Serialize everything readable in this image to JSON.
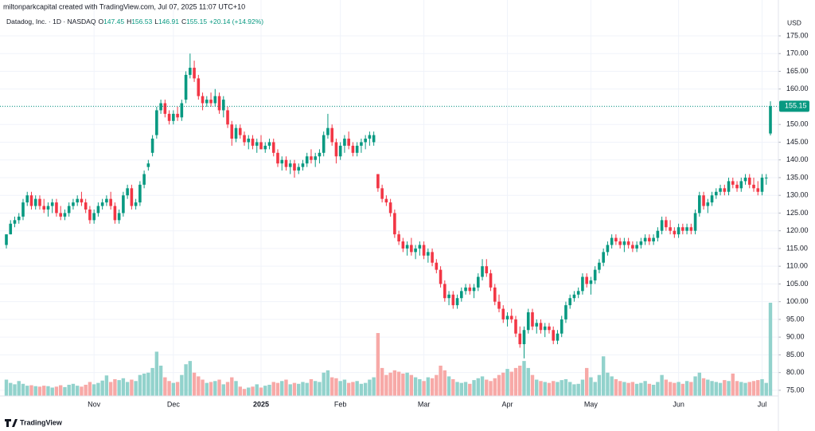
{
  "header": "miltonparkcapital created with TradingView.com, Jul 07, 2025 11:07 UTC+10",
  "footer": "TradingView",
  "chart_data": {
    "type": "candlestick",
    "legend": {
      "name": "Datadog, Inc. · 1D · NASDAQ",
      "ohlc_labels": [
        "O",
        "H",
        "L",
        "C"
      ],
      "change": "+20.14 (+14.92%)"
    },
    "currency": "USD",
    "up_color": "#089981",
    "down_color": "#f23645",
    "volume_up_color": "#92d2cc",
    "volume_down_color": "#f7a9a7",
    "grid": true,
    "ylim": [
      73.4,
      177.7
    ],
    "yticks": [
      {
        "value": 75,
        "label": "75.00"
      },
      {
        "value": 80,
        "label": "80.00"
      },
      {
        "value": 85,
        "label": "85.00"
      },
      {
        "value": 90,
        "label": "90.00"
      },
      {
        "value": 95,
        "label": "95.00"
      },
      {
        "value": 100,
        "label": "100.00"
      },
      {
        "value": 105,
        "label": "105.00"
      },
      {
        "value": 110,
        "label": "110.00"
      },
      {
        "value": 115,
        "label": "115.00"
      },
      {
        "value": 120,
        "label": "120.00"
      },
      {
        "value": 125,
        "label": "125.00"
      },
      {
        "value": 130,
        "label": "130.00"
      },
      {
        "value": 135,
        "label": "135.00"
      },
      {
        "value": 140,
        "label": "140.00"
      },
      {
        "value": 145,
        "label": "145.00"
      },
      {
        "value": 150,
        "label": "150.00"
      },
      {
        "value": 155,
        "label": "155.00"
      },
      {
        "value": 160,
        "label": "160.00"
      },
      {
        "value": 165,
        "label": "165.00"
      },
      {
        "value": 170,
        "label": "170.00"
      },
      {
        "value": 175,
        "label": "175.00"
      }
    ],
    "categories": [
      null,
      null,
      null,
      null,
      null,
      null,
      null,
      null,
      null,
      null,
      null,
      null,
      null,
      null,
      null,
      null,
      null,
      null,
      null,
      null,
      null,
      "Nov",
      null,
      null,
      null,
      null,
      null,
      null,
      null,
      null,
      null,
      null,
      null,
      null,
      null,
      null,
      null,
      null,
      null,
      null,
      "Dec",
      null,
      null,
      null,
      null,
      null,
      null,
      null,
      null,
      null,
      null,
      null,
      null,
      null,
      null,
      null,
      null,
      null,
      null,
      null,
      null,
      "2025",
      null,
      null,
      null,
      null,
      null,
      null,
      null,
      null,
      null,
      null,
      null,
      null,
      null,
      null,
      null,
      null,
      null,
      null,
      "Feb",
      null,
      null,
      null,
      null,
      null,
      null,
      null,
      null,
      null,
      null,
      null,
      null,
      null,
      null,
      null,
      null,
      null,
      null,
      null,
      "Mar",
      null,
      null,
      null,
      null,
      null,
      null,
      null,
      null,
      null,
      null,
      null,
      null,
      null,
      null,
      null,
      null,
      null,
      null,
      null,
      "Apr",
      null,
      null,
      null,
      null,
      null,
      null,
      null,
      null,
      null,
      null,
      null,
      null,
      null,
      null,
      null,
      null,
      null,
      null,
      null,
      "May",
      null,
      null,
      null,
      null,
      null,
      null,
      null,
      null,
      null,
      null,
      null,
      null,
      null,
      null,
      null,
      null,
      null,
      null,
      null,
      null,
      "Jun",
      null,
      null,
      null,
      null,
      null,
      null,
      null,
      null,
      null,
      null,
      null,
      null,
      null,
      null,
      null,
      null,
      null,
      null,
      null,
      "Jul",
      null,
      null
    ],
    "candles": [
      [
        116,
        119,
        115,
        119
      ],
      [
        119,
        123,
        119,
        122
      ],
      [
        122,
        124,
        121,
        123
      ],
      [
        123,
        125,
        122,
        124
      ],
      [
        124,
        129,
        123,
        128
      ],
      [
        128,
        131,
        127,
        130
      ],
      [
        130,
        131,
        126,
        127
      ],
      [
        127,
        130,
        126,
        129
      ],
      [
        129,
        130,
        126,
        127
      ],
      [
        127,
        129,
        125,
        126
      ],
      [
        126,
        128,
        124,
        127
      ],
      [
        127,
        129,
        125,
        128
      ],
      [
        128,
        129,
        124,
        125
      ],
      [
        125,
        127,
        123,
        124
      ],
      [
        124,
        126,
        123,
        125
      ],
      [
        125,
        128,
        124,
        127
      ],
      [
        127,
        129,
        126,
        128
      ],
      [
        128,
        130,
        127,
        129
      ],
      [
        129,
        131,
        127,
        128
      ],
      [
        128,
        129,
        125,
        126
      ],
      [
        126,
        127,
        122,
        123
      ],
      [
        123,
        126,
        122,
        125
      ],
      [
        125,
        128,
        124,
        127
      ],
      [
        127,
        129,
        126,
        128
      ],
      [
        128,
        130,
        127,
        129
      ],
      [
        129,
        131,
        126,
        127
      ],
      [
        127,
        128,
        122,
        123
      ],
      [
        123,
        126,
        122,
        125
      ],
      [
        125,
        131,
        124,
        130
      ],
      [
        130,
        133,
        129,
        132
      ],
      [
        132,
        133,
        126,
        127
      ],
      [
        127,
        129,
        126,
        128
      ],
      [
        128,
        134,
        127,
        133
      ],
      [
        133,
        137,
        132,
        136
      ],
      [
        138,
        140,
        137,
        139
      ],
      [
        142,
        147,
        141,
        146
      ],
      [
        147,
        155,
        146,
        154
      ],
      [
        154,
        157,
        153,
        156
      ],
      [
        156,
        157,
        152,
        153
      ],
      [
        153,
        154,
        150,
        151
      ],
      [
        151,
        154,
        150,
        153
      ],
      [
        153,
        155,
        151,
        152
      ],
      [
        152,
        157,
        151,
        156
      ],
      [
        157,
        165,
        156,
        164
      ],
      [
        164,
        170,
        163,
        166
      ],
      [
        166,
        168,
        162,
        163
      ],
      [
        163,
        164,
        157,
        158
      ],
      [
        158,
        159,
        154,
        156
      ],
      [
        156,
        158,
        155,
        157
      ],
      [
        157,
        159,
        155,
        156
      ],
      [
        156,
        160,
        155,
        158
      ],
      [
        158,
        159,
        153,
        154
      ],
      [
        154,
        158,
        152,
        157
      ],
      [
        154,
        155,
        149,
        150
      ],
      [
        150,
        151,
        144,
        146
      ],
      [
        146,
        150,
        145,
        149
      ],
      [
        149,
        150,
        146,
        147
      ],
      [
        147,
        148,
        144,
        145
      ],
      [
        145,
        147,
        143,
        146
      ],
      [
        146,
        147,
        143,
        144
      ],
      [
        144,
        146,
        142,
        145
      ],
      [
        145,
        147,
        143,
        143
      ],
      [
        143,
        145,
        142,
        144
      ],
      [
        144,
        146,
        143,
        145
      ],
      [
        145,
        146,
        141,
        142
      ],
      [
        142,
        143,
        138,
        139
      ],
      [
        139,
        141,
        137,
        140
      ],
      [
        140,
        141,
        137,
        138
      ],
      [
        138,
        140,
        136,
        139
      ],
      [
        139,
        140,
        135,
        137
      ],
      [
        137,
        139,
        136,
        138
      ],
      [
        138,
        140,
        137,
        139
      ],
      [
        139,
        142,
        138,
        141
      ],
      [
        141,
        143,
        139,
        140
      ],
      [
        140,
        142,
        138,
        141
      ],
      [
        141,
        143,
        139,
        142
      ],
      [
        142,
        148,
        141,
        147
      ],
      [
        147,
        153,
        146,
        149
      ],
      [
        149,
        150,
        144,
        145
      ],
      [
        145,
        146,
        139,
        141
      ],
      [
        141,
        145,
        140,
        144
      ],
      [
        144,
        147,
        142,
        146
      ],
      [
        146,
        148,
        143,
        144
      ],
      [
        144,
        145,
        141,
        142
      ],
      [
        142,
        145,
        141,
        144
      ],
      [
        144,
        146,
        142,
        145
      ],
      [
        145,
        147,
        143,
        146
      ],
      [
        146,
        148,
        144,
        147
      ],
      [
        145,
        148,
        144,
        147
      ],
      [
        136,
        136,
        131,
        132
      ],
      [
        132,
        133,
        128,
        129
      ],
      [
        129,
        130,
        127,
        128
      ],
      [
        128,
        129,
        124,
        125
      ],
      [
        125,
        126,
        118,
        119
      ],
      [
        119,
        120,
        116,
        117
      ],
      [
        117,
        118,
        114,
        115
      ],
      [
        115,
        117,
        113,
        116
      ],
      [
        116,
        118,
        113,
        114
      ],
      [
        114,
        116,
        112,
        115
      ],
      [
        115,
        117,
        113,
        116
      ],
      [
        116,
        117,
        112,
        113
      ],
      [
        113,
        115,
        111,
        114
      ],
      [
        114,
        115,
        110,
        111
      ],
      [
        111,
        112,
        108,
        109
      ],
      [
        109,
        110,
        104,
        105
      ],
      [
        105,
        106,
        100,
        101
      ],
      [
        101,
        103,
        99,
        102
      ],
      [
        102,
        103,
        98,
        99
      ],
      [
        99,
        102,
        98,
        101
      ],
      [
        101,
        104,
        100,
        103
      ],
      [
        103,
        105,
        102,
        104
      ],
      [
        104,
        105,
        102,
        103
      ],
      [
        103,
        105,
        101,
        104
      ],
      [
        104,
        108,
        103,
        107
      ],
      [
        107,
        112,
        106,
        110
      ],
      [
        110,
        112,
        107,
        108
      ],
      [
        108,
        109,
        103,
        104
      ],
      [
        104,
        105,
        99,
        100
      ],
      [
        100,
        102,
        97,
        98
      ],
      [
        98,
        99,
        94,
        95
      ],
      [
        95,
        97,
        93,
        96
      ],
      [
        96,
        98,
        94,
        95
      ],
      [
        95,
        96,
        90,
        91
      ],
      [
        91,
        93,
        87,
        88
      ],
      [
        88,
        93,
        84,
        92
      ],
      [
        92,
        98,
        91,
        97
      ],
      [
        97,
        98,
        92,
        93
      ],
      [
        93,
        95,
        91,
        94
      ],
      [
        94,
        95,
        91,
        92
      ],
      [
        92,
        94,
        90,
        93
      ],
      [
        93,
        94,
        91,
        92
      ],
      [
        92,
        93,
        88,
        89
      ],
      [
        89,
        92,
        88,
        91
      ],
      [
        91,
        96,
        90,
        95
      ],
      [
        95,
        100,
        94,
        99
      ],
      [
        99,
        102,
        98,
        101
      ],
      [
        101,
        103,
        100,
        102
      ],
      [
        102,
        104,
        101,
        103
      ],
      [
        103,
        108,
        102,
        107
      ],
      [
        107,
        108,
        104,
        105
      ],
      [
        105,
        107,
        102,
        106
      ],
      [
        106,
        110,
        105,
        109
      ],
      [
        109,
        112,
        108,
        111
      ],
      [
        111,
        115,
        110,
        114
      ],
      [
        114,
        117,
        113,
        116
      ],
      [
        116,
        119,
        115,
        118
      ],
      [
        118,
        119,
        116,
        117
      ],
      [
        117,
        118,
        115,
        116
      ],
      [
        116,
        118,
        114,
        117
      ],
      [
        117,
        118,
        115,
        116
      ],
      [
        116,
        117,
        114,
        115
      ],
      [
        115,
        117,
        114,
        116
      ],
      [
        116,
        118,
        115,
        117
      ],
      [
        117,
        119,
        116,
        118
      ],
      [
        118,
        119,
        116,
        117
      ],
      [
        117,
        119,
        116,
        118
      ],
      [
        118,
        121,
        117,
        120
      ],
      [
        120,
        124,
        119,
        123
      ],
      [
        123,
        124,
        120,
        121
      ],
      [
        121,
        123,
        119,
        120
      ],
      [
        120,
        121,
        118,
        119
      ],
      [
        119,
        122,
        118,
        121
      ],
      [
        121,
        122,
        119,
        120
      ],
      [
        120,
        122,
        119,
        121
      ],
      [
        121,
        122,
        119,
        120
      ],
      [
        120,
        126,
        119,
        125
      ],
      [
        125,
        131,
        124,
        130
      ],
      [
        130,
        131,
        126,
        127
      ],
      [
        127,
        129,
        125,
        128
      ],
      [
        128,
        131,
        127,
        130
      ],
      [
        130,
        132,
        129,
        131
      ],
      [
        131,
        133,
        130,
        132
      ],
      [
        132,
        133,
        130,
        131
      ],
      [
        131,
        135,
        130,
        134
      ],
      [
        134,
        135,
        132,
        133
      ],
      [
        133,
        134,
        131,
        132
      ],
      [
        132,
        135,
        131,
        134
      ],
      [
        134,
        136,
        133,
        135
      ],
      [
        135,
        136,
        132,
        133
      ],
      [
        133,
        135,
        131,
        132
      ],
      [
        132,
        134,
        130,
        131
      ],
      [
        131,
        136,
        130,
        135
      ],
      [
        135,
        136,
        133,
        135.01
      ],
      [
        147.45,
        156.53,
        146.91,
        155.15
      ]
    ],
    "volume": [
      3.5,
      2.8,
      2.5,
      3.2,
      2.6,
      2.2,
      2.3,
      2.1,
      2.0,
      2.2,
      2.1,
      1.8,
      2.0,
      2.3,
      1.9,
      2.4,
      2.6,
      2.2,
      2.0,
      2.4,
      3.0,
      2.5,
      2.8,
      3.3,
      4.4,
      3.0,
      3.6,
      3.4,
      3.8,
      3.0,
      3.5,
      3.2,
      4.5,
      4.8,
      5.0,
      6.0,
      9.5,
      6.5,
      4.0,
      3.2,
      2.8,
      3.0,
      4.5,
      6.8,
      7.5,
      5.0,
      4.2,
      3.5,
      2.8,
      3.0,
      3.2,
      3.5,
      2.5,
      3.0,
      4.0,
      3.2,
      2.0,
      1.5,
      1.8,
      2.0,
      2.5,
      1.8,
      2.2,
      2.4,
      3.0,
      2.8,
      3.2,
      3.5,
      2.5,
      2.8,
      2.6,
      3.0,
      2.8,
      3.6,
      3.2,
      3.0,
      5.0,
      5.5,
      4.0,
      3.8,
      3.2,
      3.5,
      2.8,
      3.0,
      3.2,
      2.6,
      2.8,
      3.5,
      4.0,
      13.5,
      6.0,
      4.5,
      5.0,
      5.5,
      5.2,
      4.8,
      5.0,
      4.5,
      4.0,
      3.6,
      3.2,
      4.0,
      3.8,
      4.5,
      6.5,
      5.5,
      4.2,
      3.6,
      3.0,
      2.8,
      3.0,
      2.6,
      3.4,
      3.8,
      4.2,
      3.5,
      3.2,
      3.8,
      4.5,
      5.0,
      5.8,
      5.2,
      6.0,
      6.5,
      7.5,
      6.0,
      4.5,
      3.5,
      3.2,
      3.0,
      2.8,
      3.2,
      3.0,
      3.4,
      3.6,
      3.0,
      2.5,
      2.6,
      3.5,
      6.0,
      4.0,
      3.0,
      4.5,
      8.5,
      5.0,
      4.2,
      3.6,
      3.2,
      3.0,
      2.8,
      3.0,
      2.6,
      2.8,
      3.2,
      2.6,
      2.4,
      3.0,
      4.5,
      3.5,
      3.0,
      2.8,
      3.0,
      2.6,
      3.2,
      3.0,
      4.2,
      5.0,
      3.8,
      3.5,
      3.2,
      3.0,
      2.8,
      3.4,
      3.2,
      4.8,
      3.2,
      3.0,
      2.8,
      3.0,
      3.2,
      3.4,
      3.6,
      2.8,
      20.0
    ]
  }
}
